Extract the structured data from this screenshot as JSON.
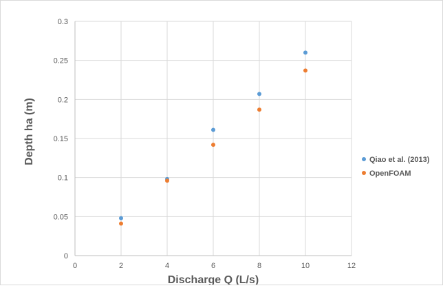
{
  "chart_data": {
    "type": "scatter",
    "title": "",
    "xlabel": "Discharge Q (L/s)",
    "ylabel": "Depth ha (m)",
    "xlim": [
      0,
      12
    ],
    "ylim": [
      0,
      0.3
    ],
    "xticks": [
      0,
      2,
      4,
      6,
      8,
      10,
      12
    ],
    "yticks": [
      0,
      0.05,
      0.1,
      0.15,
      0.2,
      0.25,
      0.3
    ],
    "grid": true,
    "legend_position": "right",
    "series": [
      {
        "name": "Qiao et al. (2013)",
        "color": "#5b9bd5",
        "x": [
          2,
          4,
          6,
          8,
          10
        ],
        "y": [
          0.048,
          0.098,
          0.161,
          0.207,
          0.26
        ]
      },
      {
        "name": "OpenFOAM",
        "color": "#ed7d31",
        "x": [
          2,
          4,
          6,
          8,
          10
        ],
        "y": [
          0.041,
          0.096,
          0.142,
          0.187,
          0.237
        ]
      }
    ]
  }
}
